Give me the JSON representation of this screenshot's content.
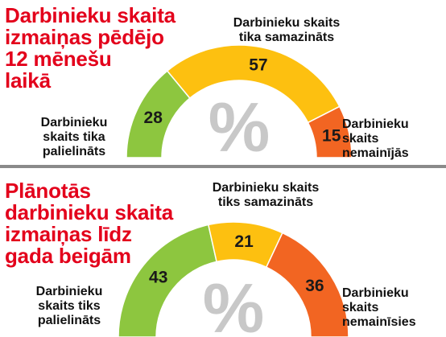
{
  "chart_data": [
    {
      "type": "pie",
      "title": "Darbinieku skaita\nizmaiņas pēdējo\n12 mēnešu\nlaikā",
      "percent_symbol": "%",
      "categories": [
        "Darbinieku\nskaits tika\npalielināts",
        "Darbinieku skaits\ntika samazināts",
        "Darbinieku\nskaits\nnemainījās"
      ],
      "values": [
        28,
        57,
        15
      ],
      "colors": [
        "#8dc63f",
        "#fdc010",
        "#f26522"
      ]
    },
    {
      "type": "pie",
      "title": "Plānotās\ndarbinieku skaita\nizmaiņas līdz\ngada beigām",
      "percent_symbol": "%",
      "categories": [
        "Darbinieku\nskaits tiks\npalielināts",
        "Darbinieku skaits\ntiks samazināts",
        "Darbinieku\nskaits\nnemainīsies"
      ],
      "values": [
        43,
        21,
        36
      ],
      "colors": [
        "#8dc63f",
        "#fdc010",
        "#f26522"
      ]
    }
  ]
}
